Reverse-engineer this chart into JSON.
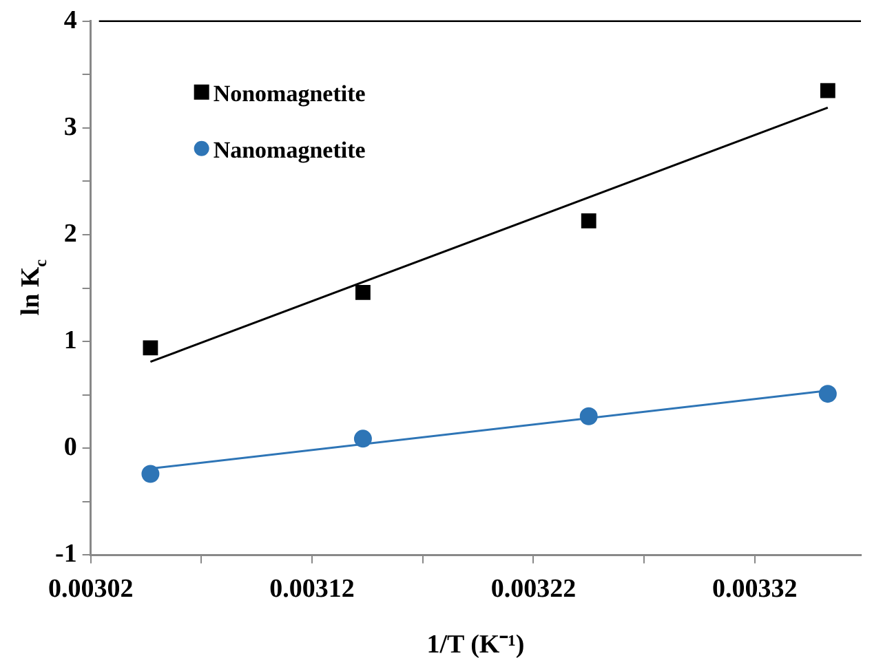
{
  "chart_data": {
    "type": "scatter",
    "xlabel": "1/T (K⁻¹)",
    "ylabel": "ln K$_{c}$",
    "xlim": [
      0.00302,
      0.003368
    ],
    "xticks": [
      0.00302,
      {
        "value": 0.00307,
        "label": null
      },
      0.00312,
      {
        "value": 0.00317,
        "label": null
      },
      0.00322,
      {
        "value": 0.00327,
        "label": null
      },
      0.00332
    ],
    "ylim": [
      -1,
      4
    ],
    "yticks": [
      -1,
      {
        "value": -0.5,
        "label": null
      },
      0,
      {
        "value": 0.5,
        "label": null
      },
      1,
      {
        "value": 1.5,
        "label": null
      },
      2,
      {
        "value": 2.5,
        "label": null
      },
      3,
      {
        "value": 3.5,
        "label": null
      },
      4
    ],
    "grid": false,
    "legend": "top left",
    "series": [
      {
        "name": "Nonomagnetite",
        "color": "#000000",
        "marker": "square",
        "x": [
          0.003047,
          0.003143,
          0.003245,
          0.003353
        ],
        "values": [
          0.94,
          1.46,
          2.13,
          3.35
        ]
      },
      {
        "name": "Nanomagnetite",
        "color": "#2e75b6",
        "marker": "circle",
        "x": [
          0.003047,
          0.003143,
          0.003245,
          0.003353
        ],
        "values": [
          -0.24,
          0.09,
          0.3,
          0.51
        ]
      },
      {
        "type": "line",
        "color": "#000000",
        "marker": "none",
        "x": [
          0.003047,
          0.003353
        ],
        "values": [
          0.81,
          3.19
        ]
      },
      {
        "type": "line",
        "color": "#2e75b6",
        "marker": "none",
        "x": [
          0.003047,
          0.003353
        ],
        "values": [
          -0.19,
          0.54
        ]
      }
    ]
  }
}
